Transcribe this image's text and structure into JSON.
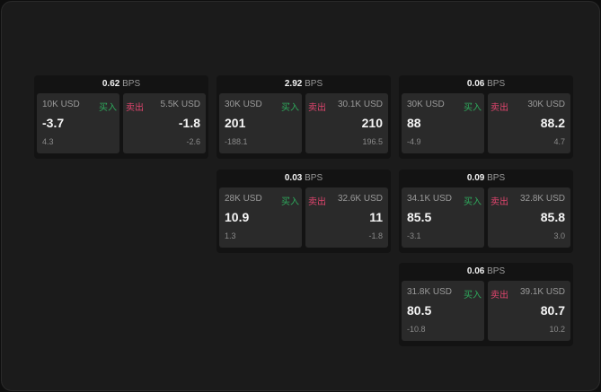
{
  "colors": {
    "buy": "#2eaa5c",
    "sell": "#e0456e"
  },
  "labels": {
    "buy": "买入",
    "sell": "卖出",
    "unit": "BPS"
  },
  "panels": [
    {
      "spread": "0.62",
      "buy": {
        "amount": "10K USD",
        "price": "-3.7",
        "change": "4.3"
      },
      "sell": {
        "amount": "5.5K USD",
        "price": "-1.8",
        "change": "-2.6"
      }
    },
    {
      "spread": "2.92",
      "buy": {
        "amount": "30K USD",
        "price": "201",
        "change": "-188.1"
      },
      "sell": {
        "amount": "30.1K USD",
        "price": "210",
        "change": "196.5"
      }
    },
    {
      "spread": "0.06",
      "buy": {
        "amount": "30K USD",
        "price": "88",
        "change": "-4.9"
      },
      "sell": {
        "amount": "30K USD",
        "price": "88.2",
        "change": "4.7"
      }
    },
    {
      "spread": "0.03",
      "buy": {
        "amount": "28K USD",
        "price": "10.9",
        "change": "1.3"
      },
      "sell": {
        "amount": "32.6K USD",
        "price": "11",
        "change": "-1.8"
      }
    },
    {
      "spread": "0.09",
      "buy": {
        "amount": "34.1K USD",
        "price": "85.5",
        "change": "-3.1"
      },
      "sell": {
        "amount": "32.8K USD",
        "price": "85.8",
        "change": "3.0"
      }
    },
    {
      "spread": "0.06",
      "buy": {
        "amount": "31.8K USD",
        "price": "80.5",
        "change": "-10.8"
      },
      "sell": {
        "amount": "39.1K USD",
        "price": "80.7",
        "change": "10.2"
      }
    }
  ]
}
